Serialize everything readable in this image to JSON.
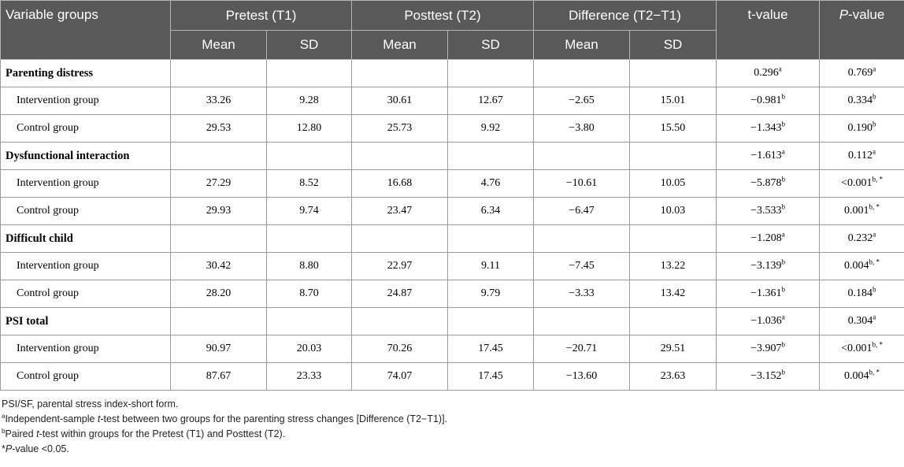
{
  "header": {
    "variable_groups": "Variable groups",
    "pretest": "Pretest (T1)",
    "posttest": "Posttest (T2)",
    "difference": "Difference (T2−T1)",
    "t_value": "t-value",
    "p_value_italic": "P",
    "p_value_rest": "-value",
    "mean": "Mean",
    "sd": "SD"
  },
  "groups": [
    {
      "label": "Parenting distress",
      "t": "0.296",
      "t_sup": "a",
      "p": "0.769",
      "p_sup": "a",
      "rows": [
        {
          "label": "Intervention group",
          "pre_mean": "33.26",
          "pre_sd": "9.28",
          "post_mean": "30.61",
          "post_sd": "12.67",
          "diff_mean": "−2.65",
          "diff_sd": "15.01",
          "t": "−0.981",
          "t_sup": "b",
          "p": "0.334",
          "p_sup": "b"
        },
        {
          "label": "Control group",
          "pre_mean": "29.53",
          "pre_sd": "12.80",
          "post_mean": "25.73",
          "post_sd": "9.92",
          "diff_mean": "−3.80",
          "diff_sd": "15.50",
          "t": "−1.343",
          "t_sup": "b",
          "p": "0.190",
          "p_sup": "b"
        }
      ]
    },
    {
      "label": "Dysfunctional interaction",
      "t": "−1.613",
      "t_sup": "a",
      "p": "0.112",
      "p_sup": "a",
      "rows": [
        {
          "label": "Intervention group",
          "pre_mean": "27.29",
          "pre_sd": "8.52",
          "post_mean": "16.68",
          "post_sd": "4.76",
          "diff_mean": "−10.61",
          "diff_sd": "10.05",
          "t": "−5.878",
          "t_sup": "b",
          "p": "<0.001",
          "p_sup": "b, *"
        },
        {
          "label": "Control group",
          "pre_mean": "29.93",
          "pre_sd": "9.74",
          "post_mean": "23.47",
          "post_sd": "6.34",
          "diff_mean": "−6.47",
          "diff_sd": "10.03",
          "t": "−3.533",
          "t_sup": "b",
          "p": "0.001",
          "p_sup": "b, *"
        }
      ]
    },
    {
      "label": "Difficult child",
      "t": "−1.208",
      "t_sup": "a",
      "p": "0.232",
      "p_sup": "a",
      "rows": [
        {
          "label": "Intervention group",
          "pre_mean": "30.42",
          "pre_sd": "8.80",
          "post_mean": "22.97",
          "post_sd": "9.11",
          "diff_mean": "−7.45",
          "diff_sd": "13.22",
          "t": "−3.139",
          "t_sup": "b",
          "p": "0.004",
          "p_sup": "b, *"
        },
        {
          "label": "Control group",
          "pre_mean": "28.20",
          "pre_sd": "8.70",
          "post_mean": "24.87",
          "post_sd": "9.79",
          "diff_mean": "−3.33",
          "diff_sd": "13.42",
          "t": "−1.361",
          "t_sup": "b",
          "p": "0.184",
          "p_sup": "b"
        }
      ]
    },
    {
      "label": "PSI total",
      "t": "−1.036",
      "t_sup": "a",
      "p": "0.304",
      "p_sup": "a",
      "rows": [
        {
          "label": "Intervention group",
          "pre_mean": "90.97",
          "pre_sd": "20.03",
          "post_mean": "70.26",
          "post_sd": "17.45",
          "diff_mean": "−20.71",
          "diff_sd": "29.51",
          "t": "−3.907",
          "t_sup": "b",
          "p": "<0.001",
          "p_sup": "b, *"
        },
        {
          "label": "Control group",
          "pre_mean": "87.67",
          "pre_sd": "23.33",
          "post_mean": "74.07",
          "post_sd": "17.45",
          "diff_mean": "−13.60",
          "diff_sd": "23.63",
          "t": "−3.152",
          "t_sup": "b",
          "p": "0.004",
          "p_sup": "b, *"
        }
      ]
    }
  ],
  "notes": {
    "abbrev": "PSI/SF, parental stress index-short form.",
    "a_mark": "a",
    "a_pre": "Independent-sample ",
    "a_ital": "t",
    "a_post": "-test between two groups for the parenting stress changes [Difference (T2−T1)].",
    "b_mark": "b",
    "b_pre": "Paired ",
    "b_ital": "t",
    "b_post": "-test within groups for the Pretest (T1) and Posttest (T2).",
    "star_mark": "*",
    "star_ital": "P",
    "star_post": "-value <0.05."
  }
}
